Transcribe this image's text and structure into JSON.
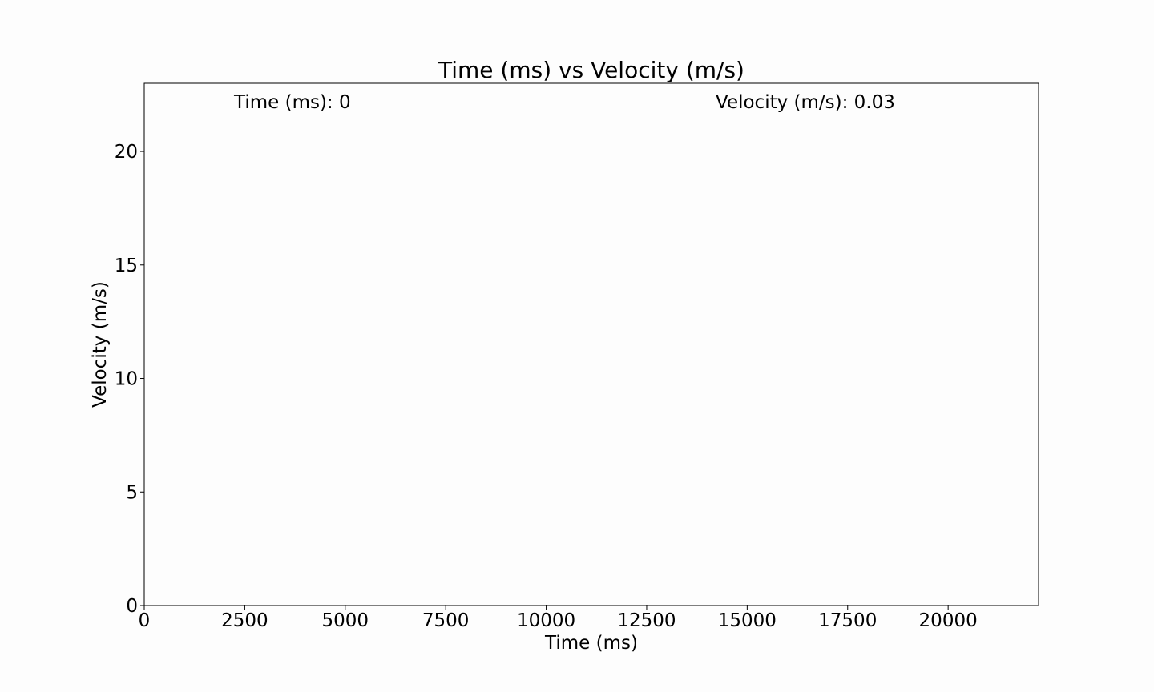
{
  "chart_data": {
    "type": "line",
    "title": "Time (ms) vs Velocity (m/s)",
    "xlabel": "Time (ms)",
    "ylabel": "Velocity (m/s)",
    "xlim": [
      0,
      22250
    ],
    "ylim": [
      0,
      23
    ],
    "xticks": [
      0,
      2500,
      5000,
      7500,
      10000,
      12500,
      15000,
      17500,
      20000
    ],
    "xtick_labels": [
      "0",
      "2500",
      "5000",
      "7500",
      "10000",
      "12500",
      "15000",
      "17500",
      "20000"
    ],
    "yticks": [
      0,
      5,
      10,
      15,
      20
    ],
    "ytick_labels": [
      "0",
      "5",
      "10",
      "15",
      "20"
    ],
    "grid": false,
    "annotations": {
      "time_text": "Time (ms): 0",
      "velocity_text": "Velocity (m/s): 0.03"
    },
    "series": [
      {
        "x": [
          0
        ],
        "y": [
          0.03
        ],
        "color": "#1f77b4"
      }
    ]
  }
}
